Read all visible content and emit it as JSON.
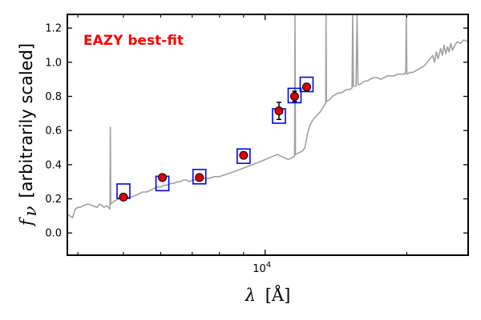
{
  "chart_data": {
    "type": "scatter",
    "title": "",
    "annotation": "EAZY best-fit",
    "annotation_color": "#ff0000",
    "xlabel_symbol": "λ",
    "xlabel_unit": "[Å]",
    "ylabel_symbol": "f",
    "ylabel_subscript": "ν",
    "ylabel_text": "[arbitrarily scaled]",
    "xscale": "log",
    "xlim": [
      3800,
      27000
    ],
    "ylim": [
      -0.13,
      1.28
    ],
    "x_tick_label": "10^4",
    "x_major_tick": 10000,
    "x_minor_ticks": [
      4000,
      5000,
      6000,
      7000,
      8000,
      9000,
      20000
    ],
    "yticks": [
      0.0,
      0.2,
      0.4,
      0.6,
      0.8,
      1.0,
      1.2
    ],
    "ytick_labels": [
      "0.0",
      "0.2",
      "0.4",
      "0.6",
      "0.8",
      "1.0",
      "1.2"
    ],
    "series": [
      {
        "name": "Template SED",
        "kind": "line",
        "color": "#a0a0a0",
        "points": [
          [
            3800,
            0.11
          ],
          [
            3850,
            0.1
          ],
          [
            3900,
            0.09
          ],
          [
            3950,
            0.14
          ],
          [
            4000,
            0.15
          ],
          [
            4050,
            0.15
          ],
          [
            4100,
            0.16
          ],
          [
            4200,
            0.17
          ],
          [
            4300,
            0.16
          ],
          [
            4400,
            0.15
          ],
          [
            4450,
            0.17
          ],
          [
            4500,
            0.16
          ],
          [
            4550,
            0.15
          ],
          [
            4600,
            0.16
          ],
          [
            4650,
            0.15
          ],
          [
            4680,
            0.14
          ],
          [
            4690,
            0.62
          ],
          [
            4700,
            0.17
          ],
          [
            4750,
            0.18
          ],
          [
            4800,
            0.19
          ],
          [
            4900,
            0.2
          ],
          [
            5000,
            0.2
          ],
          [
            5100,
            0.21
          ],
          [
            5200,
            0.21
          ],
          [
            5300,
            0.22
          ],
          [
            5400,
            0.23
          ],
          [
            5500,
            0.24
          ],
          [
            5600,
            0.24
          ],
          [
            5700,
            0.25
          ],
          [
            5800,
            0.26
          ],
          [
            5900,
            0.27
          ],
          [
            6000,
            0.27
          ],
          [
            6100,
            0.28
          ],
          [
            6200,
            0.28
          ],
          [
            6300,
            0.29
          ],
          [
            6400,
            0.29
          ],
          [
            6500,
            0.3
          ],
          [
            6600,
            0.3
          ],
          [
            6700,
            0.31
          ],
          [
            6800,
            0.31
          ],
          [
            6900,
            0.3
          ],
          [
            7000,
            0.31
          ],
          [
            7100,
            0.31
          ],
          [
            7200,
            0.32
          ],
          [
            7300,
            0.31
          ],
          [
            7400,
            0.32
          ],
          [
            7600,
            0.32
          ],
          [
            7800,
            0.33
          ],
          [
            8000,
            0.33
          ],
          [
            8200,
            0.34
          ],
          [
            8400,
            0.35
          ],
          [
            8600,
            0.36
          ],
          [
            8800,
            0.37
          ],
          [
            9000,
            0.38
          ],
          [
            9200,
            0.39
          ],
          [
            9400,
            0.4
          ],
          [
            9600,
            0.41
          ],
          [
            9800,
            0.42
          ],
          [
            10000,
            0.43
          ],
          [
            10200,
            0.44
          ],
          [
            10400,
            0.45
          ],
          [
            10600,
            0.46
          ],
          [
            10800,
            0.45
          ],
          [
            11000,
            0.44
          ],
          [
            11200,
            0.43
          ],
          [
            11400,
            0.44
          ],
          [
            11550,
            0.45
          ],
          [
            11570,
            1.28
          ],
          [
            11600,
            0.46
          ],
          [
            11800,
            0.47
          ],
          [
            12000,
            0.48
          ],
          [
            12150,
            0.5
          ],
          [
            12300,
            0.58
          ],
          [
            12450,
            0.63
          ],
          [
            12550,
            0.65
          ],
          [
            12700,
            0.67
          ],
          [
            12900,
            0.69
          ],
          [
            13100,
            0.71
          ],
          [
            13300,
            0.74
          ],
          [
            13450,
            0.76
          ],
          [
            13470,
            1.28
          ],
          [
            13500,
            0.77
          ],
          [
            13700,
            0.78
          ],
          [
            13900,
            0.8
          ],
          [
            14100,
            0.81
          ],
          [
            14300,
            0.82
          ],
          [
            14500,
            0.82
          ],
          [
            14700,
            0.83
          ],
          [
            14900,
            0.84
          ],
          [
            15100,
            0.84
          ],
          [
            15300,
            0.85
          ],
          [
            15350,
            1.28
          ],
          [
            15400,
            0.86
          ],
          [
            15600,
            0.86
          ],
          [
            15680,
            1.28
          ],
          [
            15750,
            0.87
          ],
          [
            15900,
            0.87
          ],
          [
            16100,
            0.88
          ],
          [
            16300,
            0.89
          ],
          [
            16500,
            0.89
          ],
          [
            16700,
            0.9
          ],
          [
            17000,
            0.91
          ],
          [
            17300,
            0.91
          ],
          [
            17600,
            0.9
          ],
          [
            17900,
            0.91
          ],
          [
            18200,
            0.92
          ],
          [
            18500,
            0.92
          ],
          [
            18800,
            0.92
          ],
          [
            19100,
            0.93
          ],
          [
            19400,
            0.93
          ],
          [
            19800,
            0.93
          ],
          [
            19900,
            0.95
          ],
          [
            19950,
            1.28
          ],
          [
            20000,
            0.93
          ],
          [
            20300,
            0.94
          ],
          [
            20600,
            0.94
          ],
          [
            20900,
            0.95
          ],
          [
            21200,
            0.96
          ],
          [
            21500,
            0.97
          ],
          [
            21800,
            0.98
          ],
          [
            22100,
            1.0
          ],
          [
            22400,
            1.02
          ],
          [
            22700,
            1.04
          ],
          [
            22900,
            1.0
          ],
          [
            23100,
            1.06
          ],
          [
            23300,
            1.02
          ],
          [
            23600,
            1.08
          ],
          [
            23800,
            1.04
          ],
          [
            24000,
            1.1
          ],
          [
            24200,
            1.05
          ],
          [
            24400,
            1.09
          ],
          [
            24600,
            1.06
          ],
          [
            24800,
            1.11
          ],
          [
            25000,
            1.07
          ],
          [
            25300,
            1.1
          ],
          [
            25600,
            1.12
          ],
          [
            26000,
            1.11
          ],
          [
            26400,
            1.13
          ],
          [
            27000,
            1.12
          ]
        ]
      },
      {
        "name": "Model photometry",
        "kind": "square",
        "color": "#0000ff",
        "points": [
          [
            5000,
            0.245
          ],
          [
            6050,
            0.29
          ],
          [
            7250,
            0.33
          ],
          [
            9000,
            0.45
          ],
          [
            10700,
            0.685
          ],
          [
            11550,
            0.805
          ],
          [
            12250,
            0.87
          ]
        ]
      },
      {
        "name": "Observed photometry",
        "kind": "circle-errorbar",
        "color": "#dd0000",
        "points": [
          [
            5000,
            0.21,
            0.01
          ],
          [
            6050,
            0.325,
            0.01
          ],
          [
            7250,
            0.325,
            0.01
          ],
          [
            9000,
            0.455,
            0.015
          ],
          [
            10700,
            0.715,
            0.05
          ],
          [
            11550,
            0.8,
            0.03
          ],
          [
            12250,
            0.855,
            0.02
          ]
        ]
      }
    ]
  }
}
